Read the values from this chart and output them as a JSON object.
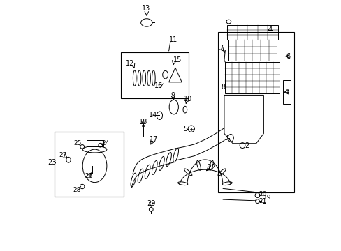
{
  "title": "",
  "background_color": "#ffffff",
  "line_color": "#000000",
  "fig_width": 4.89,
  "fig_height": 3.6,
  "dpi": 100
}
